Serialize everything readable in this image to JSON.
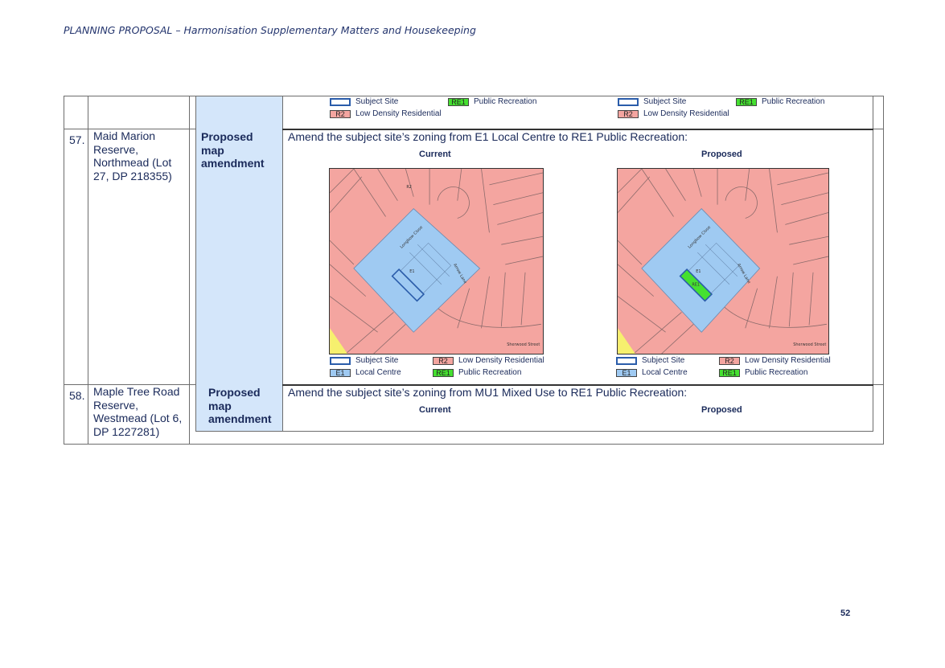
{
  "header": {
    "title": "PLANNING PROPOSAL – Harmonisation Supplementary Matters and Housekeeping"
  },
  "page_number": "52",
  "legend_labels": {
    "subject_site": "Subject Site",
    "re1_code": "RE1",
    "re1_label": "Public Recreation",
    "r2_code": "R2",
    "r2_label": "Low Density Residential",
    "e1_code": "E1",
    "e1_label": "Local Centre"
  },
  "rows": [
    {
      "number": "57.",
      "site": "Maid Marion Reserve, Northmead (Lot 27, DP 218355)",
      "type_label": "Proposed map amendment",
      "description": "Amend the subject site’s zoning from E1 Local Centre to RE1 Public Recreation:",
      "current_label": "Current",
      "proposed_label": "Proposed",
      "map_text": {
        "r2": "R2",
        "e1": "E1",
        "re1": "RE1",
        "street1": "Longbow Close",
        "street2": "Arrow Lane",
        "street3": "Sherwood Street"
      }
    },
    {
      "number": "58.",
      "site": "Maple Tree Road Reserve, Westmead (Lot 6, DP 1227281)",
      "type_label": "Proposed map amendment",
      "description": "Amend the subject site’s zoning from MU1 Mixed Use to RE1 Public Recreation:",
      "current_label": "Current",
      "proposed_label": "Proposed"
    }
  ],
  "colors": {
    "r2": "#f4a5a0",
    "e1": "#9fcaf2",
    "re1": "#45e030",
    "subject_outline": "#2a5caa",
    "table_blue": "#d4e6fa"
  }
}
